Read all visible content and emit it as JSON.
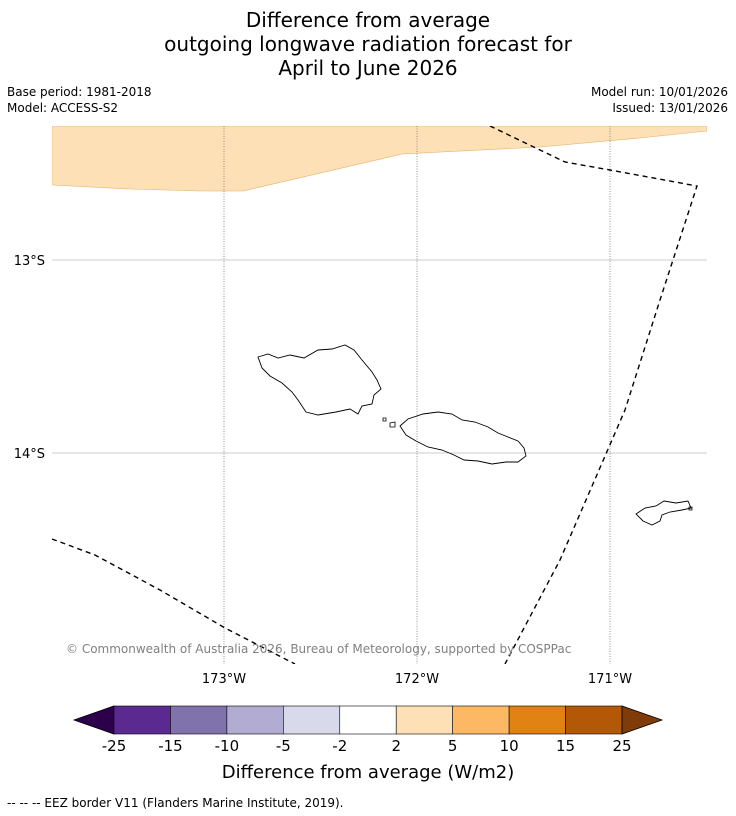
{
  "header": {
    "title_line1": "Difference from average",
    "title_line2": "outgoing longwave radiation forecast for",
    "title_line3": "April to June 2026",
    "base_period": "Base period: 1981-2018",
    "model": "Model: ACCESS-S2",
    "model_run": "Model run: 10/01/2026",
    "issued": "Issued: 13/01/2026"
  },
  "map": {
    "lat_labels": [
      "13°S",
      "14°S"
    ],
    "lon_labels": [
      "173°W",
      "172°W",
      "171°W"
    ],
    "copyright": "© Commonwealth of Australia 2026, Bureau of Meteorology, supported by COSPPac",
    "anomaly_fill_color": "#fde0b6",
    "anomaly_category": "2 to 5"
  },
  "colorbar": {
    "title": "Difference from average (W/m2)",
    "bins": [
      {
        "lo": null,
        "hi": -25,
        "color": "#2d004b"
      },
      {
        "lo": -25,
        "hi": -15,
        "color": "#5b2a90"
      },
      {
        "lo": -15,
        "hi": -10,
        "color": "#8073ac"
      },
      {
        "lo": -10,
        "hi": -5,
        "color": "#b2abd2"
      },
      {
        "lo": -5,
        "hi": -2,
        "color": "#d8daeb"
      },
      {
        "lo": -2,
        "hi": 2,
        "color": "#ffffff"
      },
      {
        "lo": 2,
        "hi": 5,
        "color": "#fee0b6"
      },
      {
        "lo": 5,
        "hi": 10,
        "color": "#fdb863"
      },
      {
        "lo": 10,
        "hi": 15,
        "color": "#e08214"
      },
      {
        "lo": 15,
        "hi": 25,
        "color": "#b35806"
      },
      {
        "lo": 25,
        "hi": null,
        "color": "#7f3b08"
      }
    ],
    "tick_labels": [
      "-25",
      "-15",
      "-10",
      "-5",
      "-2",
      "2",
      "5",
      "10",
      "15",
      "25"
    ]
  },
  "legend": {
    "eez_note": "--  --  -- EEZ border V11 (Flanders Marine Institute, 2019)."
  }
}
